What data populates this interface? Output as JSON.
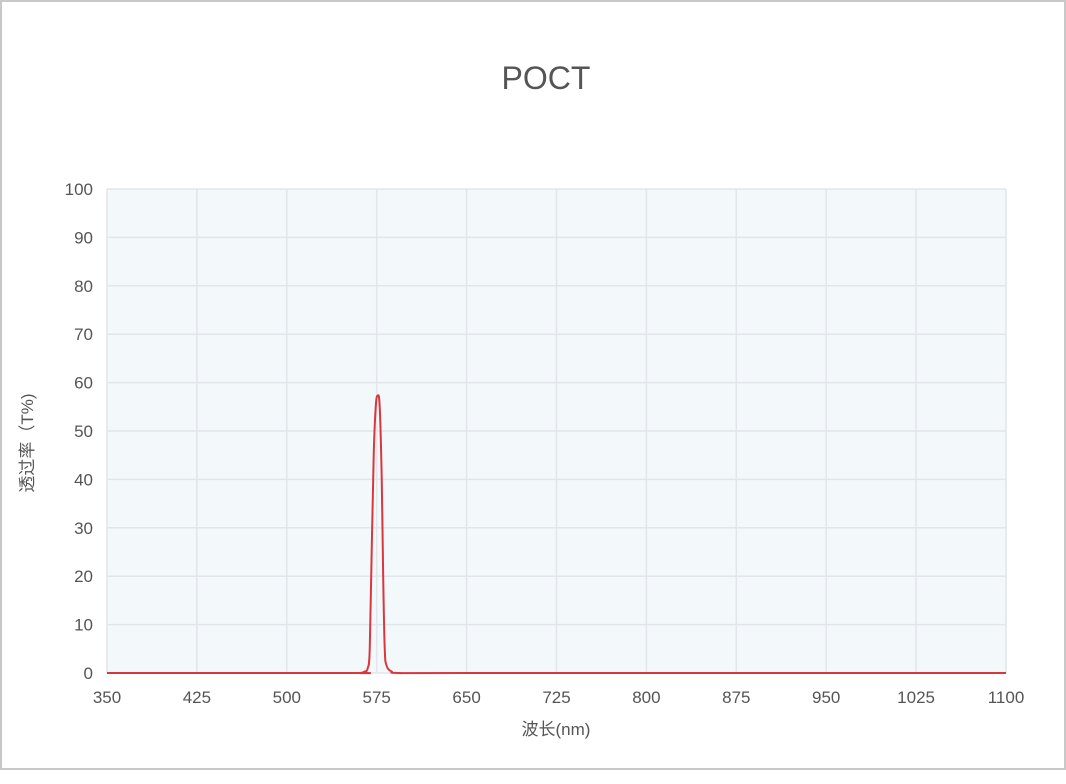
{
  "chart_data": {
    "type": "line",
    "title": "POCT",
    "xlabel": "波长(nm)",
    "ylabel": "透过率（T%)",
    "xlim": [
      350,
      1100
    ],
    "ylim": [
      0,
      100
    ],
    "xticks": [
      350,
      425,
      500,
      575,
      650,
      725,
      800,
      875,
      950,
      1025,
      1100
    ],
    "yticks": [
      0,
      10,
      20,
      30,
      40,
      50,
      60,
      70,
      80,
      90,
      100
    ],
    "grid": true,
    "colors": {
      "line": "#d9373f",
      "plot_bg": "#f3f8fb",
      "grid": "#e2e6ea"
    },
    "series": [
      {
        "x": [
          350,
          550,
          561,
          565,
          567.5,
          569.2,
          570.8,
          572.5,
          574.2,
          575.8,
          577.5,
          579.2,
          580.4,
          581.7,
          583.3,
          587.5,
          594,
          650,
          1100
        ],
        "y": [
          0,
          0,
          0,
          0.3,
          1,
          5,
          25,
          45,
          55,
          57.3,
          55,
          40,
          20,
          5,
          1.5,
          0.3,
          0,
          0,
          0
        ]
      }
    ]
  }
}
